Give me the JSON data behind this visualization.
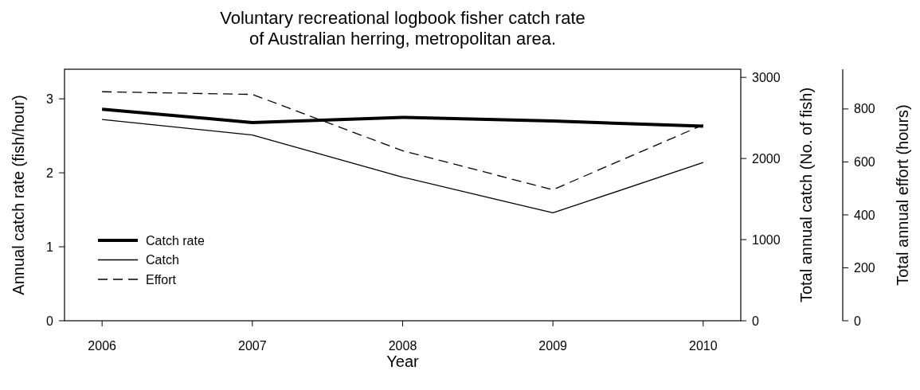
{
  "chart_data": {
    "type": "line",
    "title": "Voluntary recreational logbook fisher catch rate\nof Australian herring, metropolitan area.",
    "xlabel": "Year",
    "ylabel": "Annual catch rate (fish/hour)",
    "y2label": "Total annual catch (No. of fish)",
    "y3label": "Total annual effort (hours)",
    "x": [
      2006,
      2007,
      2008,
      2009,
      2010
    ],
    "xlim": [
      2005.75,
      2010.25
    ],
    "xticks": [
      2006,
      2007,
      2008,
      2009,
      2010
    ],
    "ylim": [
      0,
      3.4
    ],
    "yticks": [
      0,
      1,
      2,
      3
    ],
    "y2lim": [
      0,
      3100
    ],
    "y2ticks": [
      0,
      1000,
      2000,
      3000
    ],
    "y3lim": [
      0,
      950
    ],
    "y3ticks": [
      0,
      200,
      400,
      600,
      800
    ],
    "series": [
      {
        "name": "Catch rate",
        "color": "#000000",
        "axis": "y",
        "line_style": "solid",
        "values": [
          2.86,
          2.68,
          2.75,
          2.7,
          2.63
        ]
      },
      {
        "name": "Catch",
        "color": "#000000",
        "axis": "y2",
        "line_style": "solid",
        "values": [
          2480,
          2290,
          1770,
          1330,
          1950
        ]
      },
      {
        "name": "Effort",
        "color": "#000000",
        "axis": "y3",
        "line_style": "dashed",
        "values": [
          865,
          855,
          642,
          495,
          740
        ]
      }
    ],
    "legend": "bottom left",
    "grid": false
  }
}
